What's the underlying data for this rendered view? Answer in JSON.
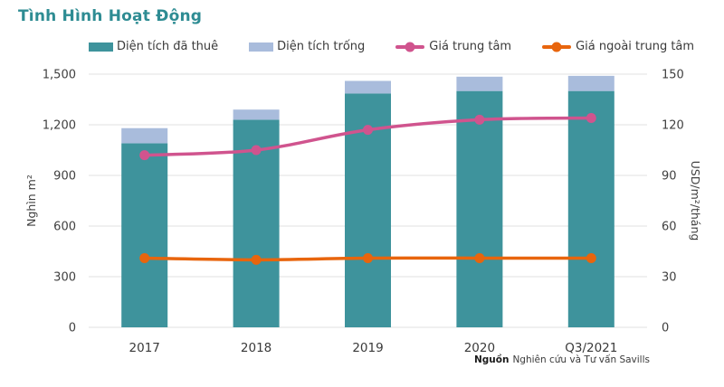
{
  "title": "Tình Hình Hoạt Động",
  "legend": {
    "items": [
      {
        "label": "Diện tích đã thuê",
        "type": "bar",
        "color": "#3E939C"
      },
      {
        "label": "Diện tích trống",
        "type": "bar",
        "color": "#A9BCDC"
      },
      {
        "label": "Giá trung tâm",
        "type": "line",
        "color": "#D0548E"
      },
      {
        "label": "Giá ngoài trung tâm",
        "type": "line",
        "color": "#E8650D"
      }
    ]
  },
  "source": {
    "prefix": "Nguồn",
    "text": "Nghiên cứu và Tư vấn Savills"
  },
  "colors": {
    "title": "#2E8C93",
    "text": "#3f3f3f",
    "tick_text": "#404040",
    "grid": "#E8E8E6",
    "background": "#FFFFFF"
  },
  "chart_data": {
    "type": "bar",
    "subtype": "stacked-bar-with-lines",
    "categories": [
      "2017",
      "2018",
      "2019",
      "2020",
      "Q3/2021"
    ],
    "bar_series": [
      {
        "name": "Diện tích đã thuê",
        "color": "#3E939C",
        "axis": "left",
        "values": [
          1090,
          1230,
          1385,
          1400,
          1400
        ]
      },
      {
        "name": "Diện tích trống",
        "color": "#A9BCDC",
        "axis": "left",
        "values": [
          90,
          60,
          75,
          85,
          90
        ]
      }
    ],
    "line_series": [
      {
        "name": "Giá trung tâm",
        "color": "#D0548E",
        "axis": "right",
        "values": [
          102,
          105,
          117,
          123,
          124
        ]
      },
      {
        "name": "Giá ngoài trung tâm",
        "color": "#E8650D",
        "axis": "right",
        "values": [
          41,
          40,
          41,
          41,
          41
        ]
      }
    ],
    "left_axis": {
      "label": "Nghìn m²",
      "min": 0,
      "max": 1500,
      "step": 300,
      "tick_labels": [
        "0",
        "300",
        "600",
        "900",
        "1,200",
        "1,500"
      ]
    },
    "right_axis": {
      "label": "USD/m²/tháng",
      "min": 0,
      "max": 150,
      "step": 30,
      "tick_labels": [
        "0",
        "30",
        "60",
        "90",
        "120",
        "150"
      ]
    },
    "grid": "horizontal",
    "legend_position": "top"
  }
}
